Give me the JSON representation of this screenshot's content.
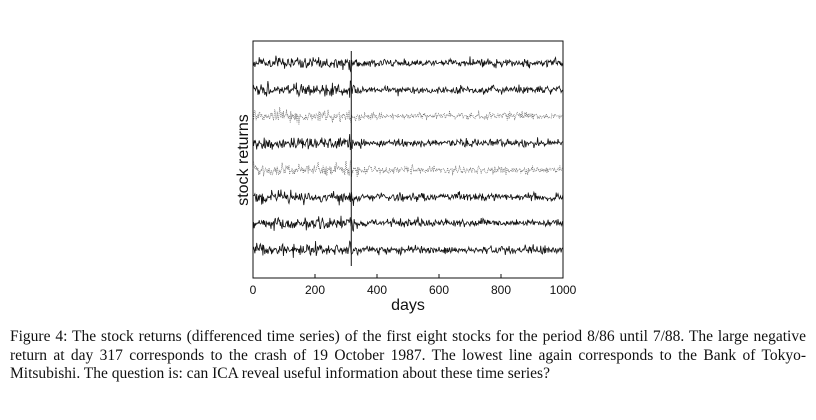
{
  "chart_data": {
    "type": "line",
    "xlabel": "days",
    "ylabel": "stock returns",
    "xlim": [
      0,
      1000
    ],
    "xticks": [
      "0",
      "200",
      "400",
      "600",
      "800",
      "1000"
    ],
    "series_count": 8,
    "crash_day": 317,
    "series": [
      {
        "style": "solid",
        "color": "#111111"
      },
      {
        "style": "solid",
        "color": "#111111"
      },
      {
        "style": "dotted",
        "color": "#666666"
      },
      {
        "style": "solid",
        "color": "#111111"
      },
      {
        "style": "dotted",
        "color": "#666666"
      },
      {
        "style": "solid",
        "color": "#111111"
      },
      {
        "style": "solid",
        "color": "#111111"
      },
      {
        "style": "solid",
        "color": "#111111"
      }
    ]
  },
  "caption": {
    "text": "Figure 4: The stock returns (differenced time series) of the first eight stocks for the period 8/86 until 7/88. The large negative return at day 317 corresponds to the crash of 19 October 1987. The lowest line again corresponds to the Bank of Tokyo-Mitsubishi. The question is: can ICA reveal useful information about these time series?"
  }
}
